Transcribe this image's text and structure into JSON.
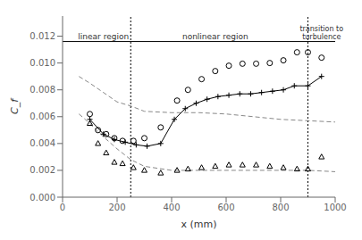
{
  "chart_data": {
    "type": "line",
    "xlabel": "x  (mm)",
    "ylabel": "C_f",
    "xlim": [
      0,
      1000
    ],
    "ylim": [
      0,
      0.0135
    ],
    "xticks": [
      0,
      200,
      400,
      600,
      800,
      1000
    ],
    "yticks": [
      {
        "value": 0,
        "label": "0.000"
      },
      0.002,
      0.004,
      0.006,
      0.008,
      {
        "value": 0.01,
        "label": "0.010"
      },
      0.012
    ],
    "grid": false,
    "series": [
      {
        "x": [
          60,
          100,
          150,
          200,
          250,
          300,
          400,
          500,
          600,
          700,
          800,
          900,
          1000
        ],
        "values": [
          0.009,
          0.0085,
          0.0078,
          0.0071,
          0.0068,
          0.0064,
          0.0063,
          0.0063,
          0.0062,
          0.006,
          0.0058,
          0.0057,
          0.0056
        ],
        "color": "#888888",
        "line_style": "dashed",
        "marker": "none"
      },
      {
        "x": [
          60,
          100,
          150,
          200,
          250,
          300,
          400,
          500,
          600,
          700,
          800,
          900,
          1000
        ],
        "values": [
          0.0062,
          0.0055,
          0.0045,
          0.0036,
          0.0028,
          0.0023,
          0.002,
          0.002,
          0.002,
          0.002,
          0.002,
          0.002,
          0.0019
        ],
        "color": "#888888",
        "line_style": "dashed",
        "marker": "none"
      },
      {
        "x": [
          100,
          150,
          190,
          230,
          270,
          310,
          360,
          410,
          450,
          490,
          530,
          570,
          610,
          650,
          690,
          730,
          770,
          810,
          850,
          900,
          950
        ],
        "values": [
          0.0058,
          0.0047,
          0.0043,
          0.0041,
          0.0039,
          0.0038,
          0.004,
          0.0058,
          0.0066,
          0.007,
          0.0073,
          0.0075,
          0.0076,
          0.0077,
          0.0077,
          0.0078,
          0.0079,
          0.008,
          0.0083,
          0.0083,
          0.009
        ],
        "color": "#000000",
        "line_style": "solid",
        "marker": "plus"
      },
      {
        "x": [
          100,
          130,
          160,
          190,
          220,
          260,
          300,
          360,
          420,
          460,
          510,
          560,
          610,
          660,
          710,
          760,
          810,
          860,
          900,
          950
        ],
        "values": [
          0.0062,
          0.005,
          0.0047,
          0.0044,
          0.0042,
          0.0042,
          0.0044,
          0.0052,
          0.0072,
          0.008,
          0.0088,
          0.0094,
          0.0098,
          0.00995,
          0.00995,
          0.01,
          0.0102,
          0.0108,
          0.0108,
          0.0104
        ],
        "color": "#000000",
        "line_style": "none",
        "marker": "circle"
      },
      {
        "x": [
          100,
          130,
          160,
          190,
          220,
          260,
          300,
          360,
          420,
          460,
          510,
          560,
          610,
          660,
          710,
          760,
          810,
          860,
          900,
          950
        ],
        "values": [
          0.0055,
          0.004,
          0.0033,
          0.0026,
          0.0025,
          0.0022,
          0.002,
          0.0018,
          0.002,
          0.0021,
          0.0022,
          0.0023,
          0.0024,
          0.0024,
          0.0024,
          0.0023,
          0.0022,
          0.0021,
          0.0021,
          0.003
        ],
        "color": "#000000",
        "line_style": "none",
        "marker": "triangle"
      }
    ],
    "vlines": [
      250,
      900
    ],
    "hlines": [
      0.0116
    ],
    "annotations": [
      {
        "text": "linear region",
        "x": 150,
        "y": 0.0116
      },
      {
        "text": "nonlinear region",
        "x": 560,
        "y": 0.0116
      },
      {
        "text": "transition to\nturbulence",
        "x": 950,
        "y": 0.0116
      }
    ]
  }
}
